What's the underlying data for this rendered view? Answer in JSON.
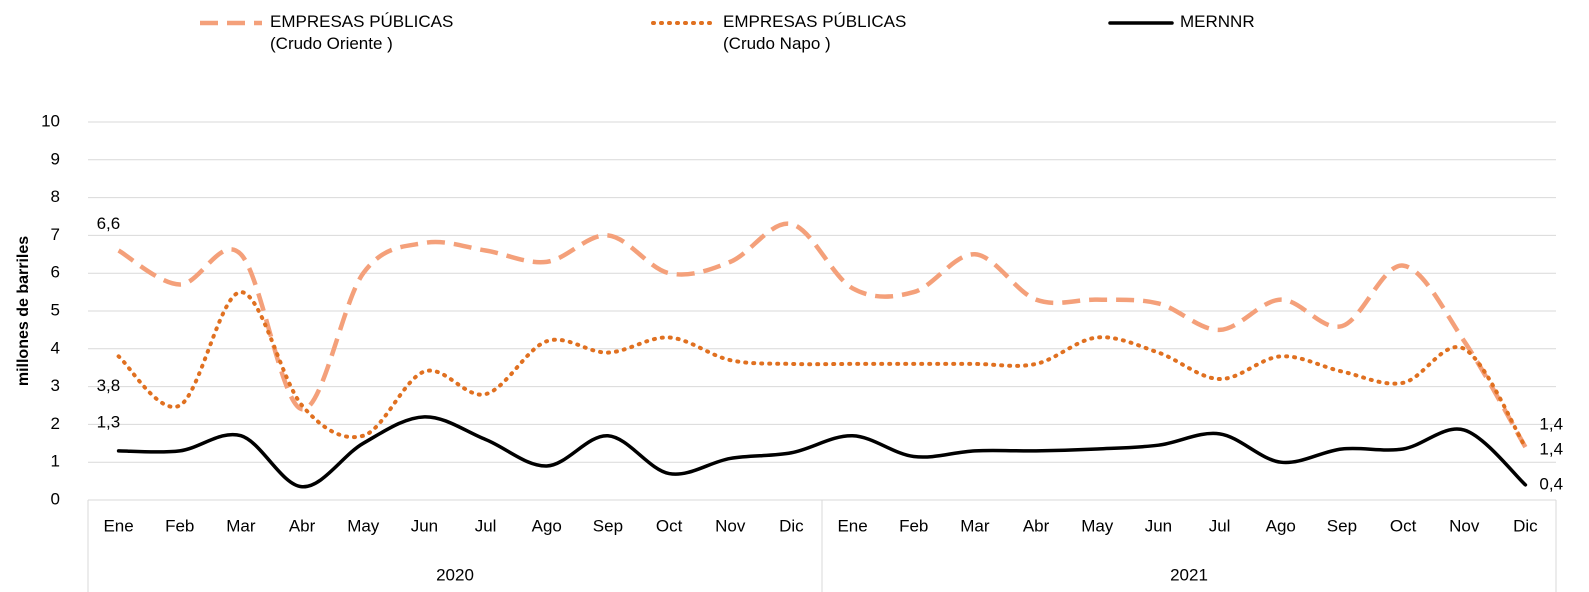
{
  "chart_data": {
    "type": "line",
    "y_label": "millones de barriles",
    "categories": [
      "Ene",
      "Feb",
      "Mar",
      "Abr",
      "May",
      "Jun",
      "Jul",
      "Ago",
      "Sep",
      "Oct",
      "Nov",
      "Dic",
      "Ene",
      "Feb",
      "Mar",
      "Abr",
      "May",
      "Jun",
      "Jul",
      "Ago",
      "Sep",
      "Oct",
      "Nov",
      "Dic"
    ],
    "category_groups": [
      "2020",
      "2021"
    ],
    "ylim": [
      0,
      10
    ],
    "yticks": [
      0,
      1,
      2,
      3,
      4,
      5,
      6,
      7,
      8,
      9,
      10
    ],
    "grid": true,
    "smooth": true,
    "series": [
      {
        "name": "EMPRESAS PÚBLICAS\n(Crudo Oriente )",
        "color": "#f4a07a",
        "dash": "dashed",
        "values": [
          6.6,
          5.7,
          6.5,
          2.4,
          6.0,
          6.8,
          6.6,
          6.3,
          7.0,
          6.0,
          6.3,
          7.3,
          5.6,
          5.5,
          6.5,
          5.3,
          5.3,
          5.2,
          4.5,
          5.3,
          4.6,
          6.2,
          4.2,
          1.4
        ],
        "value_labels": [
          "6,6",
          null,
          null,
          null,
          null,
          null,
          null,
          null,
          null,
          null,
          null,
          null,
          null,
          null,
          null,
          null,
          null,
          null,
          null,
          null,
          null,
          null,
          null,
          "1,4"
        ]
      },
      {
        "name": "EMPRESAS PÚBLICAS\n(Crudo Napo )",
        "color": "#e07020",
        "dash": "dotted",
        "values": [
          3.8,
          2.5,
          5.5,
          2.5,
          1.7,
          3.4,
          2.8,
          4.2,
          3.9,
          4.3,
          3.7,
          3.6,
          3.6,
          3.6,
          3.6,
          3.6,
          4.3,
          3.9,
          3.2,
          3.8,
          3.4,
          3.1,
          4.0,
          1.4
        ],
        "value_labels": [
          "3,8",
          null,
          null,
          null,
          null,
          null,
          null,
          null,
          null,
          null,
          null,
          null,
          null,
          null,
          null,
          null,
          null,
          null,
          null,
          null,
          null,
          null,
          null,
          "1,4"
        ]
      },
      {
        "name": "MERNNR",
        "color": "#000000",
        "dash": "solid",
        "values": [
          1.3,
          1.3,
          1.7,
          0.35,
          1.5,
          2.2,
          1.6,
          0.9,
          1.7,
          0.7,
          1.1,
          1.25,
          1.7,
          1.15,
          1.3,
          1.3,
          1.35,
          1.45,
          1.75,
          1.0,
          1.35,
          1.35,
          1.85,
          0.4
        ],
        "value_labels": [
          "1,3",
          null,
          null,
          null,
          null,
          null,
          null,
          null,
          null,
          null,
          null,
          null,
          null,
          null,
          null,
          null,
          null,
          null,
          null,
          null,
          null,
          null,
          null,
          "0,4"
        ]
      }
    ]
  }
}
